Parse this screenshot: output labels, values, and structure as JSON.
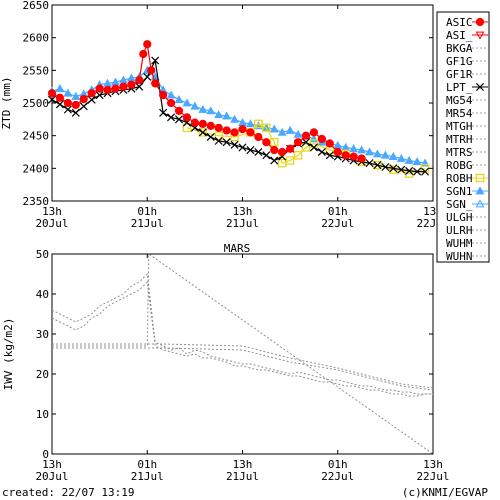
{
  "footer": {
    "created": "created: 22/07 13:19",
    "credit": "(c)KNMI/EGVAP"
  },
  "chart_data": [
    {
      "type": "line",
      "title": "",
      "ylabel": "ZTD (mm)",
      "xlabel": "",
      "ylim": [
        2350,
        2650
      ],
      "yticks": [
        2350,
        2400,
        2450,
        2500,
        2550,
        2600,
        2650
      ],
      "xlim": [
        0,
        48
      ],
      "xticks": [
        {
          "x": 0,
          "top": "13h",
          "bottom": "20Jul"
        },
        {
          "x": 12,
          "top": "01h",
          "bottom": "21Jul"
        },
        {
          "x": 24,
          "top": "13h",
          "bottom": "21Jul"
        },
        {
          "x": 36,
          "top": "01h",
          "bottom": "22Jul"
        },
        {
          "x": 48,
          "top": "13h",
          "bottom": "22Jul"
        }
      ],
      "grid": false,
      "legend_position": "right",
      "legend": [
        {
          "name": "ASIC",
          "color": "#ff0000",
          "marker": "filled-circle"
        },
        {
          "name": "ASI_",
          "color": "#ff0000",
          "marker": "open-triangle-down"
        },
        {
          "name": "BKGA",
          "color": "#a0a0a0",
          "marker": "dotted"
        },
        {
          "name": "GF1G",
          "color": "#a0a0a0",
          "marker": "dotted"
        },
        {
          "name": "GF1R",
          "color": "#a0a0a0",
          "marker": "dotted"
        },
        {
          "name": "LPT_",
          "color": "#000000",
          "marker": "x"
        },
        {
          "name": "MG54",
          "color": "#a0a0a0",
          "marker": "dotted"
        },
        {
          "name": "MR54",
          "color": "#a0a0a0",
          "marker": "dotted"
        },
        {
          "name": "MTGH",
          "color": "#a0a0a0",
          "marker": "dotted"
        },
        {
          "name": "MTRH",
          "color": "#a0a0a0",
          "marker": "dotted"
        },
        {
          "name": "MTRS",
          "color": "#a0a0a0",
          "marker": "dotted"
        },
        {
          "name": "ROBG",
          "color": "#a0a0a0",
          "marker": "dotted"
        },
        {
          "name": "ROBH",
          "color": "#e8d820",
          "marker": "open-square"
        },
        {
          "name": "SGN1",
          "color": "#4aa8ff",
          "marker": "filled-triangle-up"
        },
        {
          "name": "SGN_",
          "color": "#4aa8ff",
          "marker": "open-triangle-up"
        },
        {
          "name": "ULGH",
          "color": "#a0a0a0",
          "marker": "dotted"
        },
        {
          "name": "ULRH",
          "color": "#a0a0a0",
          "marker": "dotted"
        },
        {
          "name": "WUHM",
          "color": "#a0a0a0",
          "marker": "dotted"
        },
        {
          "name": "WUHN",
          "color": "#a0a0a0",
          "marker": "dotted"
        }
      ],
      "series": [
        {
          "name": "SGN1",
          "color": "#4aa8ff",
          "marker": "filled-triangle-up",
          "x": [
            0,
            1,
            2,
            3,
            4,
            5,
            6,
            7,
            8,
            9,
            10,
            11,
            12,
            13,
            14,
            15,
            16,
            17,
            18,
            19,
            20,
            21,
            22,
            23,
            24,
            25,
            26,
            27,
            28,
            29,
            30,
            31,
            32,
            33,
            34,
            35,
            36,
            37,
            38,
            39,
            40,
            41,
            42,
            43,
            44,
            45,
            46,
            47
          ],
          "y": [
            2518,
            2522,
            2515,
            2510,
            2514,
            2520,
            2528,
            2530,
            2532,
            2535,
            2538,
            2540,
            2550,
            2540,
            2520,
            2512,
            2505,
            2500,
            2495,
            2490,
            2488,
            2482,
            2480,
            2475,
            2470,
            2468,
            2465,
            2462,
            2460,
            2455,
            2458,
            2452,
            2450,
            2445,
            2440,
            2438,
            2435,
            2432,
            2430,
            2428,
            2425,
            2422,
            2420,
            2418,
            2415,
            2412,
            2410,
            2408
          ]
        },
        {
          "name": "ROBH",
          "color": "#e8d820",
          "marker": "open-square",
          "x": [
            17,
            19,
            21,
            23,
            25,
            26,
            27,
            28,
            29,
            30,
            31,
            32,
            33,
            35,
            37,
            39,
            41,
            43,
            45,
            47
          ],
          "y": [
            2462,
            2455,
            2450,
            2448,
            2455,
            2468,
            2462,
            2440,
            2408,
            2412,
            2420,
            2432,
            2438,
            2428,
            2422,
            2410,
            2405,
            2398,
            2392,
            2400
          ]
        },
        {
          "name": "LPT_",
          "color": "#000000",
          "marker": "x",
          "x": [
            0,
            1,
            2,
            3,
            4,
            5,
            6,
            7,
            8,
            9,
            10,
            11,
            12,
            13,
            14,
            15,
            16,
            17,
            18,
            19,
            20,
            21,
            22,
            23,
            24,
            25,
            26,
            27,
            28,
            29,
            30,
            31,
            32,
            33,
            34,
            35,
            36,
            37,
            38,
            39,
            40,
            41,
            42,
            43,
            44,
            45,
            46,
            47
          ],
          "y": [
            2505,
            2498,
            2490,
            2485,
            2495,
            2505,
            2512,
            2515,
            2518,
            2520,
            2522,
            2525,
            2540,
            2565,
            2485,
            2478,
            2475,
            2470,
            2462,
            2455,
            2448,
            2442,
            2440,
            2436,
            2432,
            2428,
            2425,
            2420,
            2412,
            2418,
            2430,
            2438,
            2440,
            2432,
            2425,
            2420,
            2418,
            2415,
            2412,
            2410,
            2408,
            2405,
            2402,
            2400,
            2398,
            2396,
            2395,
            2395
          ]
        },
        {
          "name": "ASIC",
          "color": "#ff0000",
          "marker": "filled-circle",
          "x": [
            0,
            1,
            2,
            3,
            4,
            5,
            6,
            7,
            8,
            9,
            10,
            11,
            11.5,
            12,
            12.5,
            13,
            14,
            15,
            16,
            17,
            18,
            19,
            20,
            21,
            22,
            23,
            24,
            25,
            26,
            27,
            28,
            29,
            30,
            31,
            32,
            33,
            34,
            35,
            36,
            37,
            38,
            39
          ],
          "y": [
            2515,
            2508,
            2500,
            2497,
            2506,
            2515,
            2522,
            2520,
            2522,
            2525,
            2528,
            2535,
            2575,
            2590,
            2550,
            2530,
            2512,
            2500,
            2488,
            2478,
            2470,
            2468,
            2465,
            2462,
            2458,
            2455,
            2460,
            2455,
            2448,
            2440,
            2428,
            2425,
            2430,
            2440,
            2450,
            2455,
            2445,
            2438,
            2425,
            2420,
            2418,
            2415
          ]
        }
      ]
    },
    {
      "type": "line",
      "title": "MARS",
      "ylabel": "IWV (kg/m2)",
      "xlabel": "",
      "ylim": [
        0,
        50
      ],
      "yticks": [
        0,
        10,
        20,
        30,
        40,
        50
      ],
      "xlim": [
        0,
        48
      ],
      "xticks": [
        {
          "x": 0,
          "top": "13h",
          "bottom": "20Jul"
        },
        {
          "x": 12,
          "top": "01h",
          "bottom": "21Jul"
        },
        {
          "x": 24,
          "top": "13h",
          "bottom": "21Jul"
        },
        {
          "x": 36,
          "top": "01h",
          "bottom": "22Jul"
        },
        {
          "x": 48,
          "top": "13h",
          "bottom": "22Jul"
        }
      ],
      "grid": false,
      "series": [
        {
          "name": "",
          "color": "#909090",
          "x": [
            0,
            1,
            2,
            3,
            4,
            5,
            6,
            7,
            8,
            9,
            10,
            11,
            12,
            13,
            14,
            15,
            16,
            17,
            18,
            19,
            20,
            21,
            22,
            23,
            24,
            25,
            26,
            27,
            28,
            29,
            30,
            31,
            32,
            33,
            34,
            35,
            36,
            37,
            38,
            39,
            40,
            41,
            42,
            43,
            44,
            45,
            46,
            47,
            48
          ],
          "y": [
            36,
            35,
            34,
            33,
            34,
            35,
            37,
            38,
            39,
            40,
            42,
            43,
            45,
            28,
            27,
            26,
            26.5,
            25,
            26,
            25.5,
            24.5,
            24,
            23.5,
            23,
            22.5,
            22.5,
            22,
            21.5,
            21,
            20.5,
            20,
            20.5,
            20,
            19.5,
            19,
            18.5,
            18.5,
            18,
            17.5,
            17,
            17,
            16.5,
            16,
            16,
            15.5,
            15.5,
            15,
            15,
            15
          ]
        },
        {
          "name": "",
          "color": "#909090",
          "x": [
            0,
            1,
            2,
            3,
            4,
            5,
            6,
            7,
            8,
            9,
            10,
            11,
            12,
            13,
            14,
            15,
            16,
            17,
            18,
            19,
            20,
            21,
            22,
            23,
            24,
            25,
            26,
            27,
            28,
            29,
            30,
            31,
            32,
            33,
            34,
            35,
            36,
            37,
            38,
            39,
            40,
            41,
            42,
            43,
            44,
            45,
            46,
            47,
            48
          ],
          "y": [
            34,
            33,
            32,
            31,
            32,
            34,
            35,
            37,
            38,
            39,
            40,
            41,
            43,
            27,
            26,
            25.5,
            25,
            24.5,
            25,
            24,
            24,
            23.5,
            23,
            22,
            22,
            21.5,
            21,
            21,
            20.5,
            20,
            19.5,
            19.5,
            19,
            18.5,
            18,
            18,
            17.5,
            17,
            17,
            16.5,
            16,
            16,
            15.5,
            15,
            15,
            14.5,
            14.5,
            15,
            15
          ]
        },
        {
          "name": "",
          "color": "#909090",
          "x": [
            0,
            12,
            12.2,
            48
          ],
          "y": [
            27,
            27,
            50,
            0
          ]
        },
        {
          "name": "",
          "color": "#909090",
          "x": [
            0,
            14,
            24,
            30,
            36,
            40,
            44,
            48
          ],
          "y": [
            26.5,
            26.5,
            26,
            23,
            21,
            19,
            17,
            16
          ]
        },
        {
          "name": "",
          "color": "#909090",
          "x": [
            0,
            14,
            24,
            30,
            36,
            40,
            44,
            48
          ],
          "y": [
            27.5,
            27.5,
            27,
            24,
            21.5,
            19.5,
            17.5,
            16.5
          ]
        }
      ]
    }
  ]
}
